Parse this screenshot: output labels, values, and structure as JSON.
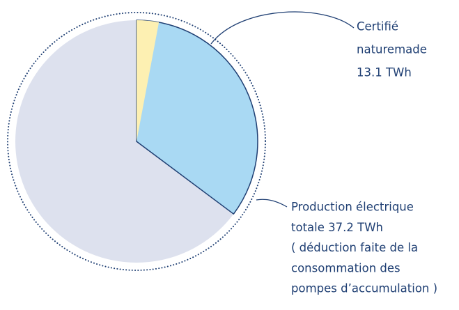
{
  "chart_data": {
    "type": "pie",
    "total": {
      "value": 37.2,
      "color": "#dde1ee",
      "label": [
        "Production électrique",
        "totale 37.2 TWh",
        "( déduction faite de la",
        "consommation des",
        "pompes d’accumulation )"
      ]
    },
    "certified": {
      "value": 13.1,
      "color": "#a9d9f3",
      "label": [
        "Certifié",
        "naturemade",
        "13.1 TWh"
      ]
    },
    "highlight": {
      "value": 1.1,
      "color": "#fdf0b2"
    }
  }
}
